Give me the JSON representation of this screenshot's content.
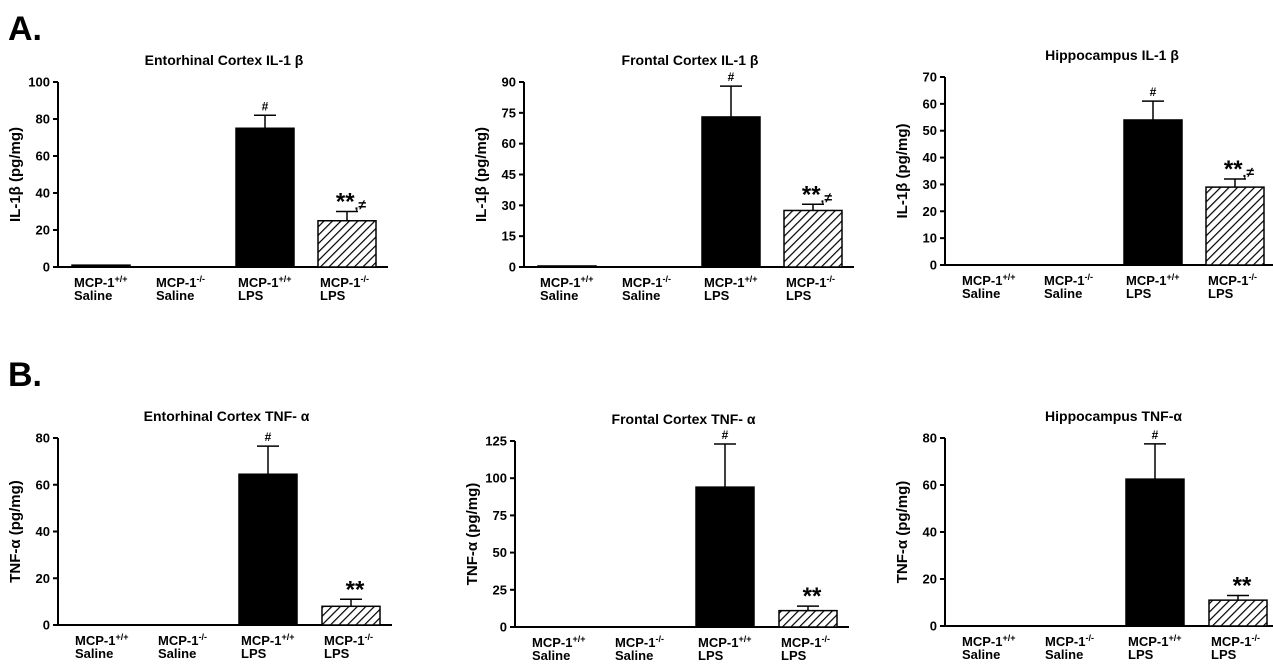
{
  "panels": [
    {
      "label": "A."
    },
    {
      "label": "B."
    }
  ],
  "chart_data": [
    {
      "type": "bar",
      "title": "Entorhinal Cortex IL-1 β",
      "ylabel": "IL-1β (pg/mg)",
      "ylim": [
        0,
        100
      ],
      "yticks": [
        0,
        20,
        40,
        60,
        80,
        100
      ],
      "categories": [
        {
          "line1": "MCP-1",
          "sup": "+/+",
          "line2": "Saline"
        },
        {
          "line1": "MCP-1",
          "sup": "-/-",
          "line2": "Saline"
        },
        {
          "line1": "MCP-1",
          "sup": "+/+",
          "line2": "LPS"
        },
        {
          "line1": "MCP-1",
          "sup": "-/-",
          "line2": "LPS"
        }
      ],
      "values": [
        1,
        0,
        75,
        25
      ],
      "errors": [
        0,
        0,
        7,
        5
      ],
      "fills": [
        "solid",
        "solid",
        "solid",
        "hatched"
      ],
      "annotations": [
        "",
        "",
        "#",
        "**,≠"
      ]
    },
    {
      "type": "bar",
      "title": "Frontal Cortex IL-1 β",
      "ylabel": "IL-1β (pg/mg)",
      "ylim": [
        0,
        90
      ],
      "yticks": [
        0,
        15,
        30,
        45,
        60,
        75,
        90
      ],
      "categories": [
        {
          "line1": "MCP-1",
          "sup": "+/+",
          "line2": "Saline"
        },
        {
          "line1": "MCP-1",
          "sup": "-/-",
          "line2": "Saline"
        },
        {
          "line1": "MCP-1",
          "sup": "+/+",
          "line2": "LPS"
        },
        {
          "line1": "MCP-1",
          "sup": "-/-",
          "line2": "LPS"
        }
      ],
      "values": [
        0.5,
        0,
        73,
        27.5
      ],
      "errors": [
        0,
        0,
        15,
        3
      ],
      "fills": [
        "solid",
        "solid",
        "solid",
        "hatched"
      ],
      "annotations": [
        "",
        "",
        "#",
        "**,≠"
      ]
    },
    {
      "type": "bar",
      "title": "Hippocampus IL-1 β",
      "ylabel": "IL-1β (pg/mg)",
      "ylim": [
        0,
        70
      ],
      "yticks": [
        0,
        10,
        20,
        30,
        40,
        50,
        60,
        70
      ],
      "categories": [
        {
          "line1": "MCP-1",
          "sup": "+/+",
          "line2": "Saline"
        },
        {
          "line1": "MCP-1",
          "sup": "-/-",
          "line2": "Saline"
        },
        {
          "line1": "MCP-1",
          "sup": "+/+",
          "line2": "LPS"
        },
        {
          "line1": "MCP-1",
          "sup": "-/-",
          "line2": "LPS"
        }
      ],
      "values": [
        0,
        0,
        54,
        29
      ],
      "errors": [
        0,
        0,
        7,
        3
      ],
      "fills": [
        "solid",
        "solid",
        "solid",
        "hatched"
      ],
      "annotations": [
        "",
        "",
        "#",
        "**,≠"
      ]
    },
    {
      "type": "bar",
      "title": "Entorhinal Cortex TNF- α",
      "ylabel": "TNF-α (pg/mg)",
      "ylim": [
        0,
        80
      ],
      "yticks": [
        0,
        20,
        40,
        60,
        80
      ],
      "categories": [
        {
          "line1": "MCP-1",
          "sup": "+/+",
          "line2": "Saline"
        },
        {
          "line1": "MCP-1",
          "sup": "-/-",
          "line2": "Saline"
        },
        {
          "line1": "MCP-1",
          "sup": "+/+",
          "line2": "LPS"
        },
        {
          "line1": "MCP-1",
          "sup": "-/-",
          "line2": "LPS"
        }
      ],
      "values": [
        0,
        0,
        64.5,
        8
      ],
      "errors": [
        0,
        0,
        12,
        3
      ],
      "fills": [
        "solid",
        "solid",
        "solid",
        "hatched"
      ],
      "annotations": [
        "",
        "",
        "#",
        "**"
      ]
    },
    {
      "type": "bar",
      "title": "Frontal Cortex TNF- α",
      "ylabel": "TNF-α (pg/mg)",
      "ylim": [
        0,
        125
      ],
      "yticks": [
        0,
        25,
        50,
        75,
        100,
        125
      ],
      "categories": [
        {
          "line1": "MCP-1",
          "sup": "+/+",
          "line2": "Saline"
        },
        {
          "line1": "MCP-1",
          "sup": "-/-",
          "line2": "Saline"
        },
        {
          "line1": "MCP-1",
          "sup": "+/+",
          "line2": "LPS"
        },
        {
          "line1": "MCP-1",
          "sup": "-/-",
          "line2": "LPS"
        }
      ],
      "values": [
        0,
        0,
        94,
        11
      ],
      "errors": [
        0,
        0,
        29,
        3
      ],
      "fills": [
        "solid",
        "solid",
        "solid",
        "hatched"
      ],
      "annotations": [
        "",
        "",
        "#",
        "**"
      ]
    },
    {
      "type": "bar",
      "title": "Hippocampus TNF-α",
      "ylabel": "TNF-α (pg/mg)",
      "ylim": [
        0,
        80
      ],
      "yticks": [
        0,
        20,
        40,
        60,
        80
      ],
      "categories": [
        {
          "line1": "MCP-1",
          "sup": "+/+",
          "line2": "Saline"
        },
        {
          "line1": "MCP-1",
          "sup": "-/-",
          "line2": "Saline"
        },
        {
          "line1": "MCP-1",
          "sup": "+/+",
          "line2": "LPS"
        },
        {
          "line1": "MCP-1",
          "sup": "-/-",
          "line2": "LPS"
        }
      ],
      "values": [
        0,
        0,
        62.5,
        11
      ],
      "errors": [
        0,
        0,
        15,
        2
      ],
      "fills": [
        "solid",
        "solid",
        "solid",
        "hatched"
      ],
      "annotations": [
        "",
        "",
        "#",
        "**"
      ]
    }
  ]
}
